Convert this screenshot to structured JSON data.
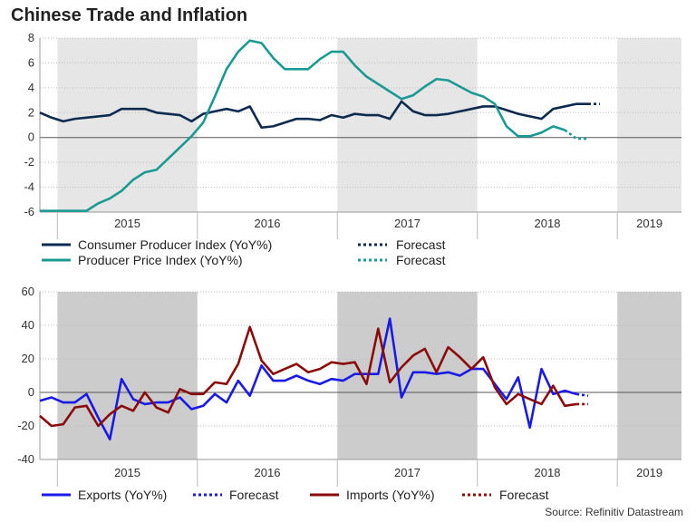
{
  "title": "Chinese Trade and Inflation",
  "source": "Source: Refinitiv Datastream",
  "colors": {
    "cpi": "#0d2a4f",
    "ppi": "#1a9a92",
    "exports": "#1a1ae6",
    "imports": "#8a0b0b",
    "shade": "#e6e6e6",
    "shade2": "#cccccc"
  },
  "chart_data": [
    {
      "type": "line",
      "title": "Chinese Trade and Inflation",
      "x_start": "2014-11",
      "x_end": "2019-06",
      "ylim": [
        -6,
        8
      ],
      "yticks": [
        -6,
        -4,
        -2,
        0,
        2,
        4,
        6,
        8
      ],
      "year_labels": [
        "2015",
        "2016",
        "2017",
        "2018",
        "2019"
      ],
      "shaded_years": [
        "2015",
        "2017",
        "2019"
      ],
      "series": [
        {
          "name": "Consumer Producer Index (YoY%)",
          "forecast_label": "Forecast",
          "values": [
            2.0,
            1.6,
            1.3,
            1.5,
            1.6,
            1.7,
            1.8,
            2.3,
            2.3,
            2.3,
            2.0,
            1.9,
            1.8,
            1.3,
            1.9,
            2.1,
            2.3,
            2.1,
            2.5,
            0.8,
            0.9,
            1.2,
            1.5,
            1.5,
            1.4,
            1.8,
            1.6,
            1.9,
            1.8,
            1.8,
            1.5,
            2.9,
            2.1,
            1.8,
            1.8,
            1.9,
            2.1,
            2.3,
            2.5,
            2.5,
            2.2,
            1.9,
            1.7,
            1.5,
            2.3,
            2.5,
            2.7,
            2.7
          ],
          "forecast": [
            2.7,
            2.7
          ]
        },
        {
          "name": "Producer Price Index (YoY%)",
          "forecast_label": "Forecast",
          "values": [
            -5.9,
            -5.9,
            -5.9,
            -5.9,
            -5.9,
            -5.3,
            -4.9,
            -4.3,
            -3.4,
            -2.8,
            -2.6,
            -1.7,
            -0.8,
            0.1,
            1.2,
            3.3,
            5.5,
            6.9,
            7.8,
            7.6,
            6.4,
            5.5,
            5.5,
            5.5,
            6.3,
            6.9,
            6.9,
            5.8,
            4.9,
            4.3,
            3.7,
            3.1,
            3.4,
            4.1,
            4.7,
            4.6,
            4.1,
            3.6,
            3.3,
            2.7,
            0.9,
            0.1,
            0.1,
            0.4,
            0.9,
            0.6
          ],
          "forecast": [
            0.6,
            -0.1,
            -0.1
          ]
        }
      ]
    },
    {
      "type": "line",
      "x_start": "2014-11",
      "x_end": "2019-06",
      "ylim": [
        -40,
        60
      ],
      "yticks": [
        -40,
        -20,
        0,
        20,
        40,
        60
      ],
      "year_labels": [
        "2015",
        "2016",
        "2017",
        "2018",
        "2019"
      ],
      "shaded_years": [
        "2015",
        "2017",
        "2019"
      ],
      "series": [
        {
          "name": "Exports (YoY%)",
          "forecast_label": "Forecast",
          "values": [
            -5,
            -3,
            -6,
            -6,
            -1,
            -15,
            -28,
            8,
            -4,
            -7,
            -6,
            -6,
            -3,
            -10,
            -8,
            -1,
            -6,
            7,
            -2,
            16,
            7,
            7,
            10,
            7,
            5,
            8,
            7,
            11,
            11,
            11,
            44,
            -3,
            12,
            12,
            11,
            12,
            10,
            14,
            14,
            5,
            -4,
            9,
            -21,
            14,
            -1,
            1,
            -1
          ],
          "forecast": [
            -1,
            -2
          ]
        },
        {
          "name": "Imports (YoY%)",
          "forecast_label": "Forecast",
          "values": [
            -14,
            -20,
            -19,
            -9,
            -8,
            -20,
            -13,
            -8,
            -11,
            0,
            -9,
            -12,
            2,
            -1,
            -1,
            6,
            5,
            17,
            39,
            19,
            11,
            14,
            17,
            12,
            14,
            18,
            17,
            18,
            5,
            38,
            6,
            15,
            22,
            26,
            12,
            27,
            21,
            14,
            21,
            3,
            -7,
            -1,
            -4,
            -7,
            4,
            -8,
            -7
          ],
          "forecast": [
            -7,
            -7
          ]
        }
      ]
    }
  ]
}
